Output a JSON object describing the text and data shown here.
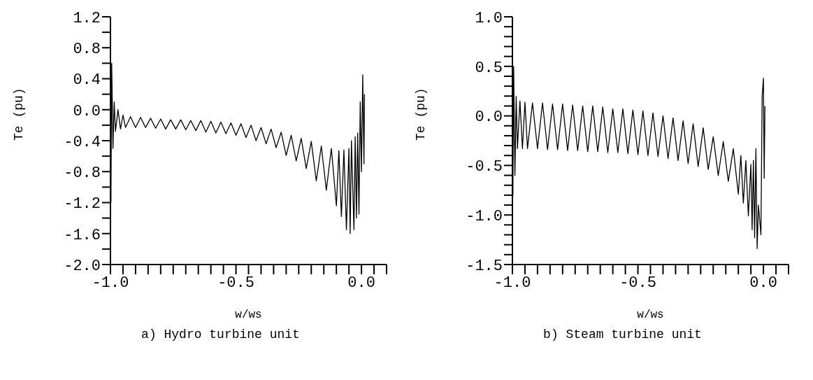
{
  "chart_data": [
    {
      "type": "line",
      "title": "a) Hydro turbine unit",
      "xlabel": "w/ws",
      "ylabel": "Te (pu)",
      "xlim": [
        -1,
        0.1
      ],
      "ylim": [
        -2,
        1.2
      ],
      "xticks": [
        {
          "value": -1,
          "label": "-1.0"
        },
        {
          "value": -0.95,
          "label": null
        },
        {
          "value": -0.9,
          "label": null
        },
        {
          "value": -0.85,
          "label": null
        },
        {
          "value": -0.8,
          "label": null
        },
        {
          "value": -0.75,
          "label": null
        },
        {
          "value": -0.7,
          "label": null
        },
        {
          "value": -0.65,
          "label": null
        },
        {
          "value": -0.6,
          "label": null
        },
        {
          "value": -0.55,
          "label": null
        },
        {
          "value": -0.5,
          "label": "-0.5"
        },
        {
          "value": -0.45,
          "label": null
        },
        {
          "value": -0.4,
          "label": null
        },
        {
          "value": -0.35,
          "label": null
        },
        {
          "value": -0.3,
          "label": null
        },
        {
          "value": -0.25,
          "label": null
        },
        {
          "value": -0.2,
          "label": null
        },
        {
          "value": -0.15,
          "label": null
        },
        {
          "value": -0.1,
          "label": null
        },
        {
          "value": -0.05,
          "label": null
        },
        {
          "value": 0,
          "label": "0.0"
        },
        {
          "value": 0.05,
          "label": null
        },
        {
          "value": 0.1,
          "label": null
        }
      ],
      "yticks": [
        {
          "value": -2,
          "label": "-2.0"
        },
        {
          "value": -1.8,
          "label": null
        },
        -1.6,
        {
          "value": -1.4,
          "label": null
        },
        -1.2,
        {
          "value": -1,
          "label": null
        },
        -0.8,
        {
          "value": -0.6,
          "label": null
        },
        -0.4,
        {
          "value": -0.2,
          "label": null
        },
        {
          "value": 0,
          "label": "0.0"
        },
        {
          "value": 0.2,
          "label": null
        },
        0.4,
        {
          "value": 0.6,
          "label": null
        },
        0.8,
        {
          "value": 1,
          "label": null
        },
        1.2
      ],
      "series": [
        {
          "color": "#000000",
          "x": [
            -1.0,
            -0.998,
            -0.995,
            -0.99,
            -0.985,
            -0.98,
            -0.97,
            -0.96,
            -0.95,
            -0.94,
            -0.92,
            -0.9,
            -0.88,
            -0.86,
            -0.84,
            -0.82,
            -0.8,
            -0.78,
            -0.76,
            -0.74,
            -0.72,
            -0.7,
            -0.68,
            -0.66,
            -0.64,
            -0.62,
            -0.6,
            -0.58,
            -0.56,
            -0.54,
            -0.52,
            -0.5,
            -0.48,
            -0.46,
            -0.44,
            -0.42,
            -0.4,
            -0.38,
            -0.36,
            -0.34,
            -0.32,
            -0.3,
            -0.28,
            -0.26,
            -0.24,
            -0.22,
            -0.2,
            -0.18,
            -0.16,
            -0.14,
            -0.12,
            -0.1,
            -0.09,
            -0.08,
            -0.07,
            -0.06,
            -0.05,
            -0.045,
            -0.04,
            -0.03,
            -0.025,
            -0.02,
            -0.015,
            -0.01,
            -0.005,
            0.0,
            0.005,
            0.01,
            0.012
          ],
          "values": [
            1.15,
            -1.2,
            0.6,
            -0.5,
            0.1,
            -0.28,
            0.0,
            -0.25,
            -0.07,
            -0.23,
            -0.09,
            -0.23,
            -0.1,
            -0.23,
            -0.11,
            -0.24,
            -0.12,
            -0.25,
            -0.13,
            -0.25,
            -0.13,
            -0.26,
            -0.14,
            -0.27,
            -0.14,
            -0.29,
            -0.15,
            -0.3,
            -0.16,
            -0.31,
            -0.17,
            -0.33,
            -0.18,
            -0.36,
            -0.2,
            -0.4,
            -0.23,
            -0.44,
            -0.25,
            -0.49,
            -0.29,
            -0.59,
            -0.33,
            -0.66,
            -0.37,
            -0.76,
            -0.41,
            -0.92,
            -0.47,
            -1.04,
            -0.5,
            -1.24,
            -0.53,
            -1.38,
            -0.52,
            -1.55,
            -0.5,
            -1.6,
            -0.4,
            -1.55,
            -0.35,
            -1.4,
            -0.3,
            -1.35,
            0.1,
            -0.8,
            0.45,
            -0.7,
            0.2
          ]
        }
      ]
    },
    {
      "type": "line",
      "title": "b) Steam turbine unit",
      "xlabel": "w/ws",
      "ylabel": "Te (pu)",
      "xlim": [
        -1,
        0.1
      ],
      "ylim": [
        -1.5,
        1
      ],
      "xticks": [
        {
          "value": -1,
          "label": "-1.0"
        },
        {
          "value": -0.95,
          "label": null
        },
        {
          "value": -0.9,
          "label": null
        },
        {
          "value": -0.85,
          "label": null
        },
        {
          "value": -0.8,
          "label": null
        },
        {
          "value": -0.75,
          "label": null
        },
        {
          "value": -0.7,
          "label": null
        },
        {
          "value": -0.65,
          "label": null
        },
        {
          "value": -0.6,
          "label": null
        },
        {
          "value": -0.55,
          "label": null
        },
        {
          "value": -0.5,
          "label": "-0.5"
        },
        {
          "value": -0.45,
          "label": null
        },
        {
          "value": -0.4,
          "label": null
        },
        {
          "value": -0.35,
          "label": null
        },
        {
          "value": -0.3,
          "label": null
        },
        {
          "value": -0.25,
          "label": null
        },
        {
          "value": -0.2,
          "label": null
        },
        {
          "value": -0.15,
          "label": null
        },
        {
          "value": -0.1,
          "label": null
        },
        {
          "value": -0.05,
          "label": null
        },
        {
          "value": 0,
          "label": "0.0"
        },
        {
          "value": 0.05,
          "label": null
        },
        {
          "value": 0.1,
          "label": null
        }
      ],
      "yticks": [
        -1.5,
        {
          "value": -1.4,
          "label": null
        },
        {
          "value": -1.3,
          "label": null
        },
        {
          "value": -1.2,
          "label": null
        },
        {
          "value": -1.1,
          "label": null
        },
        {
          "value": -1,
          "label": "-1.0"
        },
        {
          "value": -0.9,
          "label": null
        },
        {
          "value": -0.8,
          "label": null
        },
        {
          "value": -0.7,
          "label": null
        },
        {
          "value": -0.6,
          "label": null
        },
        -0.5,
        {
          "value": -0.4,
          "label": null
        },
        {
          "value": -0.3,
          "label": null
        },
        {
          "value": -0.2,
          "label": null
        },
        {
          "value": -0.1,
          "label": null
        },
        {
          "value": 0,
          "label": "0.0"
        },
        {
          "value": 0.1,
          "label": null
        },
        {
          "value": 0.2,
          "label": null
        },
        {
          "value": 0.3,
          "label": null
        },
        {
          "value": 0.4,
          "label": null
        },
        0.5,
        {
          "value": 0.6,
          "label": null
        },
        {
          "value": 0.7,
          "label": null
        },
        {
          "value": 0.8,
          "label": null
        },
        {
          "value": 0.9,
          "label": null
        },
        {
          "value": 1,
          "label": "1.0"
        }
      ],
      "series": [
        {
          "color": "#000000",
          "x": [
            -1.0,
            -0.998,
            -0.995,
            -0.99,
            -0.985,
            -0.98,
            -0.97,
            -0.96,
            -0.95,
            -0.94,
            -0.92,
            -0.9,
            -0.88,
            -0.86,
            -0.84,
            -0.82,
            -0.8,
            -0.78,
            -0.76,
            -0.74,
            -0.72,
            -0.7,
            -0.68,
            -0.66,
            -0.64,
            -0.62,
            -0.6,
            -0.58,
            -0.56,
            -0.54,
            -0.52,
            -0.5,
            -0.48,
            -0.46,
            -0.44,
            -0.42,
            -0.4,
            -0.38,
            -0.36,
            -0.34,
            -0.32,
            -0.3,
            -0.28,
            -0.26,
            -0.24,
            -0.22,
            -0.2,
            -0.18,
            -0.16,
            -0.14,
            -0.12,
            -0.1,
            -0.09,
            -0.08,
            -0.07,
            -0.06,
            -0.05,
            -0.045,
            -0.04,
            -0.035,
            -0.03,
            -0.025,
            -0.02,
            -0.01,
            -0.005,
            0.0,
            0.003,
            0.006
          ],
          "values": [
            0.93,
            -0.8,
            0.5,
            -0.6,
            0.2,
            -0.33,
            0.15,
            -0.33,
            0.14,
            -0.33,
            0.13,
            -0.33,
            0.13,
            -0.34,
            0.12,
            -0.34,
            0.12,
            -0.35,
            0.11,
            -0.35,
            0.1,
            -0.36,
            0.1,
            -0.36,
            0.09,
            -0.37,
            0.07,
            -0.37,
            0.07,
            -0.38,
            0.06,
            -0.39,
            0.05,
            -0.4,
            0.03,
            -0.41,
            0.0,
            -0.43,
            -0.02,
            -0.45,
            -0.05,
            -0.48,
            -0.08,
            -0.51,
            -0.12,
            -0.54,
            -0.21,
            -0.6,
            -0.26,
            -0.66,
            -0.33,
            -0.79,
            -0.4,
            -0.88,
            -0.45,
            -1.01,
            -0.49,
            -1.15,
            -0.45,
            -1.23,
            -0.33,
            -1.34,
            -0.9,
            -1.2,
            0.2,
            0.38,
            -0.63,
            0.1
          ]
        }
      ]
    }
  ]
}
